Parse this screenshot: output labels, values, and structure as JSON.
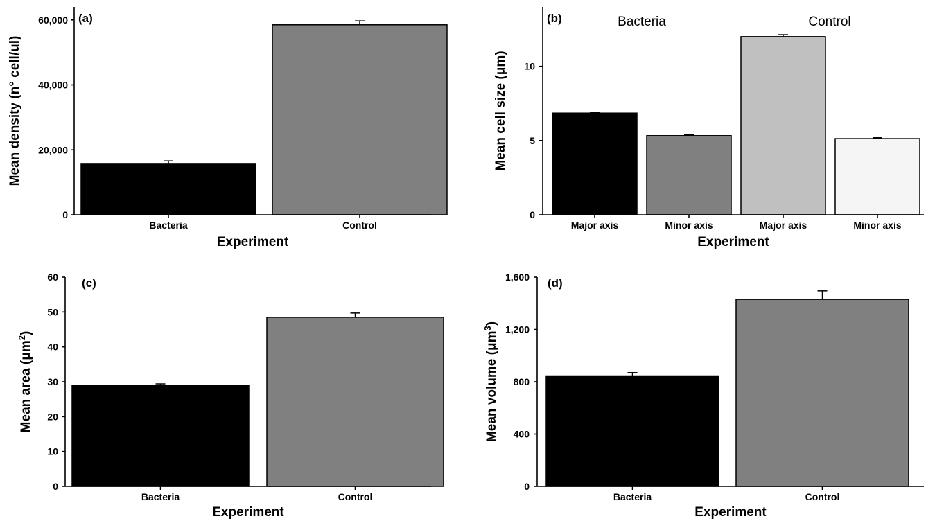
{
  "chart_data": [
    {
      "type": "bar",
      "panel_label": "(a)",
      "categories": [
        "Bacteria",
        "Control"
      ],
      "values": [
        15800,
        58500
      ],
      "errors": [
        800,
        1200
      ],
      "colors": [
        "#000000",
        "#808080"
      ],
      "xlabel": "Experiment",
      "ylabel": "Mean density (n° cell/ul)",
      "ylabel_sup": "",
      "ylabel_end": "",
      "ylim": [
        0,
        64000
      ],
      "yticks": [
        0,
        20000,
        40000,
        60000
      ],
      "ytick_labels": [
        "0",
        "20,000",
        "40,000",
        "60,000"
      ]
    },
    {
      "type": "bar",
      "panel_label": "(b)",
      "categories": [
        "Major axis",
        "Minor axis",
        "Major axis",
        "Minor axis"
      ],
      "values": [
        6.85,
        5.33,
        12.0,
        5.13
      ],
      "errors": [
        0.06,
        0.05,
        0.13,
        0.06
      ],
      "colors": [
        "#000000",
        "#808080",
        "#c0c0c0",
        "#f5f5f5"
      ],
      "group_labels": [
        "Bacteria",
        "Control"
      ],
      "xlabel": "Experiment",
      "ylabel": "Mean cell size (μm)",
      "ylabel_sup": "",
      "ylabel_end": "",
      "ylim": [
        0,
        14
      ],
      "yticks": [
        0,
        5,
        10
      ],
      "ytick_labels": [
        "0",
        "5",
        "10"
      ]
    },
    {
      "type": "bar",
      "panel_label": "(c)",
      "categories": [
        "Bacteria",
        "Control"
      ],
      "values": [
        28.9,
        48.5
      ],
      "errors": [
        0.5,
        1.2
      ],
      "colors": [
        "#000000",
        "#808080"
      ],
      "xlabel": "Experiment",
      "ylabel": "Mean area (μm",
      "ylabel_sup": "2",
      "ylabel_end": ")",
      "ylim": [
        0,
        60
      ],
      "yticks": [
        0,
        10,
        20,
        30,
        40,
        50,
        60
      ],
      "ytick_labels": [
        "0",
        "10",
        "20",
        "30",
        "40",
        "50",
        "60"
      ]
    },
    {
      "type": "bar",
      "panel_label": "(d)",
      "categories": [
        "Bacteria",
        "Control"
      ],
      "values": [
        845,
        1430
      ],
      "errors": [
        25,
        65
      ],
      "colors": [
        "#000000",
        "#808080"
      ],
      "xlabel": "Experiment",
      "ylabel": "Mean volume (μm",
      "ylabel_sup": "3",
      "ylabel_end": ")",
      "ylim": [
        0,
        1600
      ],
      "yticks": [
        0,
        400,
        800,
        1200,
        1600
      ],
      "ytick_labels": [
        "0",
        "400",
        "800",
        "1,200",
        "1,600"
      ]
    }
  ]
}
